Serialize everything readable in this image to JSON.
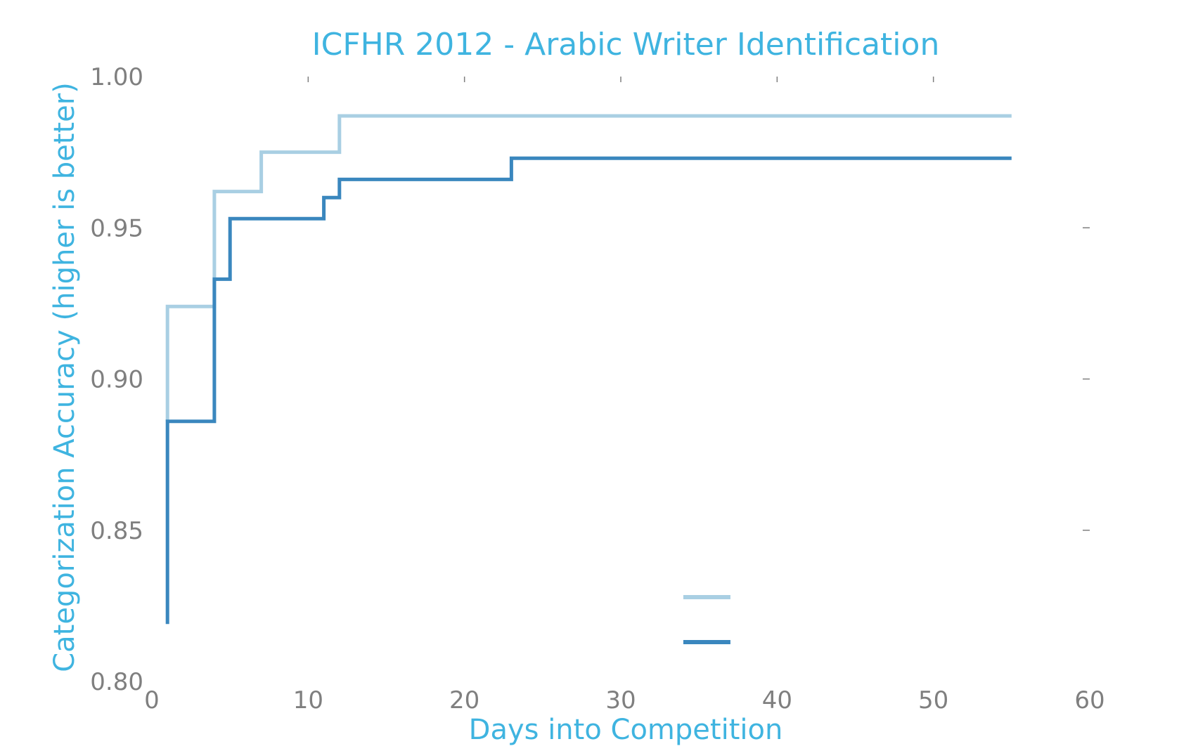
{
  "chart_data": {
    "type": "line",
    "step": true,
    "title": "ICFHR 2012 - Arabic Writer Identification",
    "xlabel": "Days into Competition",
    "ylabel": "Categorization Accuracy (higher is better)",
    "xlim": [
      0,
      60
    ],
    "ylim": [
      0.8,
      1.0
    ],
    "xticks": [
      0,
      10,
      20,
      30,
      40,
      50,
      60
    ],
    "xtick_labels": [
      "0",
      "10",
      "20",
      "30",
      "40",
      "50",
      "60"
    ],
    "yticks": [
      0.8,
      0.85,
      0.9,
      0.95,
      1.0
    ],
    "ytick_labels": [
      "0.80",
      "0.85",
      "0.90",
      "0.95",
      "1.00"
    ],
    "grid": false,
    "legend": {
      "placement": "lower-center"
    },
    "series": [
      {
        "color": "#a9cfe3",
        "points": [
          [
            1,
            0.886
          ],
          [
            1,
            0.924
          ],
          [
            4,
            0.924
          ],
          [
            4,
            0.962
          ],
          [
            7,
            0.962
          ],
          [
            7,
            0.975
          ],
          [
            12,
            0.975
          ],
          [
            12,
            0.987
          ],
          [
            55,
            0.987
          ]
        ]
      },
      {
        "color": "#3a87be",
        "points": [
          [
            1,
            0.819
          ],
          [
            1,
            0.886
          ],
          [
            4,
            0.886
          ],
          [
            4,
            0.933
          ],
          [
            5,
            0.933
          ],
          [
            5,
            0.953
          ],
          [
            11,
            0.953
          ],
          [
            11,
            0.96
          ],
          [
            12,
            0.96
          ],
          [
            12,
            0.966
          ],
          [
            23,
            0.966
          ],
          [
            23,
            0.973
          ],
          [
            55,
            0.973
          ]
        ]
      }
    ]
  },
  "colors": {
    "title": "#3fb4e0",
    "axis_label": "#3fb4e0",
    "tick_label": "#7f7f7f",
    "tick_mark": "#7f7f7f"
  }
}
